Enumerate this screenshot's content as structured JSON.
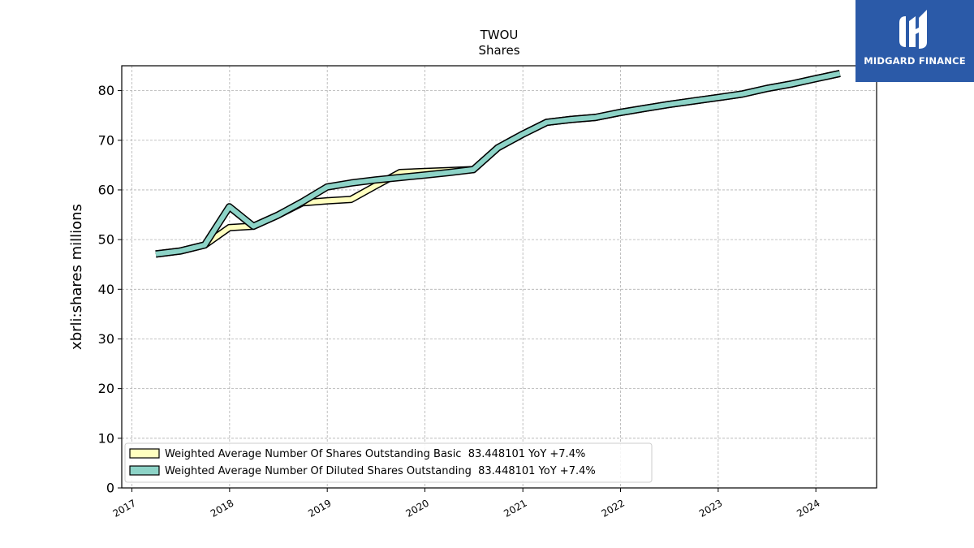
{
  "brand": {
    "name": "MIDGARD FINANCE",
    "color": "#2b5aa8",
    "icon": "midgard-logo-icon"
  },
  "chart_data": {
    "type": "line",
    "title": "TWOU",
    "subtitle": "Shares",
    "xlabel": "",
    "ylabel": "xbrli:shares millions",
    "xlim": [
      "2016-11-24",
      "2024-08-15"
    ],
    "ylim": [
      0,
      85
    ],
    "yticks": [
      0,
      10,
      20,
      30,
      40,
      50,
      60,
      70,
      80
    ],
    "xticks": [
      "2017",
      "2018",
      "2019",
      "2020",
      "2021",
      "2022",
      "2023",
      "2024"
    ],
    "grid": true,
    "legend_position": "lower-left",
    "series": [
      {
        "name": "Weighted Average Number Of Shares Outstanding Basic  83.448101 YoY +7.4%",
        "color": "#ffffc0",
        "points": [
          [
            "2017-03-31",
            47.1
          ],
          [
            "2017-06-30",
            47.7
          ],
          [
            "2017-09-30",
            48.9
          ],
          [
            "2017-12-31",
            52.4
          ],
          [
            "2018-03-31",
            52.7
          ],
          [
            "2018-06-30",
            54.9
          ],
          [
            "2018-09-30",
            57.4
          ],
          [
            "2018-12-31",
            57.8
          ],
          [
            "2019-03-31",
            58.1
          ],
          [
            "2019-06-30",
            60.8
          ],
          [
            "2019-09-30",
            63.5
          ],
          [
            "2019-12-31",
            63.7
          ],
          [
            "2020-03-31",
            63.9
          ],
          [
            "2020-06-30",
            64.1
          ],
          [
            "2020-09-30",
            68.5
          ],
          [
            "2020-12-31",
            71.2
          ],
          [
            "2021-03-31",
            73.6
          ],
          [
            "2021-06-30",
            74.2
          ],
          [
            "2021-09-30",
            74.6
          ],
          [
            "2021-12-31",
            75.6
          ],
          [
            "2022-03-31",
            76.4
          ],
          [
            "2022-06-30",
            77.2
          ],
          [
            "2022-09-30",
            77.9
          ],
          [
            "2022-12-31",
            78.6
          ],
          [
            "2023-03-31",
            79.3
          ],
          [
            "2023-06-30",
            80.4
          ],
          [
            "2023-09-30",
            81.3
          ],
          [
            "2023-12-31",
            82.4
          ],
          [
            "2024-03-31",
            83.448101
          ]
        ]
      },
      {
        "name": "Weighted Average Number Of Diluted Shares Outstanding  83.448101 YoY +7.4%",
        "color": "#8dd3c7",
        "points": [
          [
            "2017-03-31",
            47.1
          ],
          [
            "2017-06-30",
            47.7
          ],
          [
            "2017-09-30",
            48.9
          ],
          [
            "2017-12-31",
            56.6
          ],
          [
            "2018-03-31",
            52.7
          ],
          [
            "2018-06-30",
            54.9
          ],
          [
            "2018-09-30",
            57.6
          ],
          [
            "2018-12-31",
            60.6
          ],
          [
            "2019-03-31",
            61.4
          ],
          [
            "2019-06-30",
            62.0
          ],
          [
            "2019-09-30",
            62.5
          ],
          [
            "2019-12-31",
            63.0
          ],
          [
            "2020-03-31",
            63.5
          ],
          [
            "2020-06-30",
            64.1
          ],
          [
            "2020-09-30",
            68.5
          ],
          [
            "2020-12-31",
            71.2
          ],
          [
            "2021-03-31",
            73.6
          ],
          [
            "2021-06-30",
            74.2
          ],
          [
            "2021-09-30",
            74.6
          ],
          [
            "2021-12-31",
            75.6
          ],
          [
            "2022-03-31",
            76.4
          ],
          [
            "2022-06-30",
            77.2
          ],
          [
            "2022-09-30",
            77.9
          ],
          [
            "2022-12-31",
            78.6
          ],
          [
            "2023-03-31",
            79.3
          ],
          [
            "2023-06-30",
            80.4
          ],
          [
            "2023-09-30",
            81.3
          ],
          [
            "2023-12-31",
            82.4
          ],
          [
            "2024-03-31",
            83.448101
          ]
        ]
      }
    ]
  }
}
